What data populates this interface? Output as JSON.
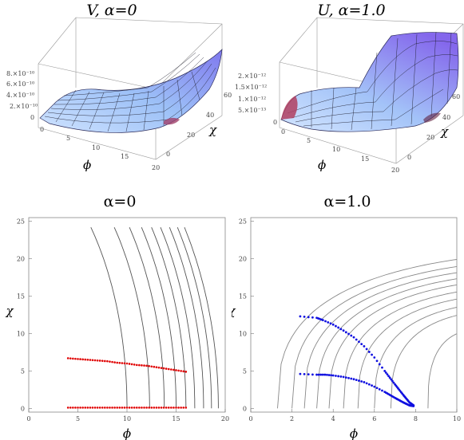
{
  "chart_data": [
    {
      "type": "surface",
      "title": "V, α=0",
      "xlabel": "ϕ",
      "ylabel": "χ",
      "z_ticks": [
        "8.×10⁻¹⁰",
        "6.×10⁻¹⁰",
        "4.×10⁻¹⁰",
        "2.×10⁻¹⁰",
        "0"
      ],
      "x_ticks": [
        "0",
        "5",
        "10",
        "15",
        "20"
      ],
      "y_ticks": [
        "0",
        "20",
        "40",
        "60"
      ],
      "xlim": [
        0,
        20
      ],
      "ylim": [
        0,
        65
      ],
      "zlim": [
        0,
        8e-10
      ]
    },
    {
      "type": "surface",
      "title": "U, α=1.0",
      "xlabel": "ϕ",
      "ylabel": "χ",
      "z_ticks": [
        "2.×10⁻¹²",
        "1.5×10⁻¹²",
        "1.×10⁻¹²",
        "5.×10⁻¹³",
        "0"
      ],
      "x_ticks": [
        "0",
        "5",
        "10",
        "15",
        "20"
      ],
      "y_ticks": [
        "0",
        "20",
        "40",
        "60"
      ],
      "xlim": [
        0,
        20
      ],
      "ylim": [
        0,
        65
      ],
      "zlim": [
        0,
        2e-12
      ]
    },
    {
      "type": "contour",
      "title": "α=0",
      "xlabel": "ϕ",
      "ylabel": "χ",
      "xlim": [
        0,
        20
      ],
      "ylim": [
        -0.5,
        25.5
      ],
      "x_ticks": [
        0,
        5,
        10,
        15,
        20
      ],
      "y_ticks": [
        0,
        5,
        10,
        15,
        20,
        25
      ],
      "contour_color": "#555555",
      "contour_radii": [
        7,
        9.3,
        10.8,
        12,
        13,
        13.9,
        14.8,
        15.6,
        16.3
      ],
      "series": [
        {
          "color": "#e00000",
          "x": [
            4,
            5,
            6,
            7,
            8,
            9,
            10,
            11,
            12,
            13,
            14,
            15,
            16
          ],
          "y": [
            6.7,
            6.6,
            6.5,
            6.4,
            6.3,
            6.1,
            6.0,
            5.8,
            5.7,
            5.5,
            5.3,
            5.1,
            4.9
          ]
        },
        {
          "color": "#e00000",
          "x": [
            4,
            5,
            6,
            7,
            8,
            9,
            10,
            11,
            12,
            13,
            14,
            15,
            16
          ],
          "y": [
            0.1,
            0.1,
            0.1,
            0.1,
            0.1,
            0.1,
            0.1,
            0.1,
            0.1,
            0.1,
            0.1,
            0.1,
            0.1
          ]
        }
      ]
    },
    {
      "type": "contour",
      "title": "α=1.0",
      "xlabel": "ϕ",
      "ylabel": "χ",
      "xlim": [
        0,
        10
      ],
      "ylim": [
        -0.5,
        25.5
      ],
      "x_ticks": [
        0,
        2,
        4,
        6,
        8,
        10
      ],
      "y_ticks": [
        0,
        5,
        10,
        15,
        20,
        25
      ],
      "contour_color": "#888888",
      "contour_starts": [
        1.3,
        2.0,
        2.6,
        3.2,
        3.8,
        4.5,
        5.2,
        6.0,
        6.8,
        8.6
      ],
      "series": [
        {
          "color": "#1010e0",
          "x": [
            2.4,
            3.2,
            3.5,
            4.0,
            4.5,
            5.0,
            5.5,
            6.0,
            6.5,
            7.0,
            7.4,
            7.7,
            7.9
          ],
          "y": [
            12.3,
            12.1,
            11.8,
            11.2,
            10.4,
            9.5,
            8.3,
            6.8,
            5.0,
            3.2,
            1.8,
            0.8,
            0.4
          ]
        },
        {
          "color": "#1010e0",
          "x": [
            2.4,
            3.2,
            3.6,
            4.0,
            4.5,
            5.0,
            5.5,
            6.0,
            6.5,
            7.0,
            7.4,
            7.7,
            7.9
          ],
          "y": [
            4.6,
            4.5,
            4.5,
            4.4,
            4.2,
            3.9,
            3.5,
            2.9,
            2.2,
            1.4,
            0.8,
            0.4,
            0.3
          ]
        }
      ]
    }
  ]
}
